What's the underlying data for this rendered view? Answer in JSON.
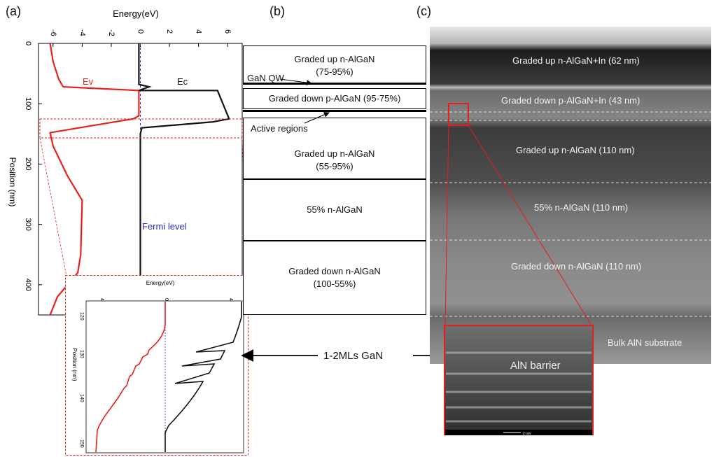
{
  "panels": {
    "a": "(a)",
    "b": "(b)",
    "c": "(c)"
  },
  "panel_a": {
    "x_axis_label": "Energy(eV)",
    "y_axis_label": "Position (nm)",
    "x_ticks": [
      "-6",
      "-4",
      "-2",
      "0",
      "2",
      "4",
      "6"
    ],
    "y_ticks": [
      "0",
      "100",
      "200",
      "300",
      "400"
    ],
    "ev_label": "Ev",
    "ec_label": "Ec",
    "fermi_label": "Fermi level",
    "colors": {
      "ev": "#e8201c",
      "ec": "#111111",
      "fermi": "#2a2ad6"
    },
    "inset": {
      "x_axis_label": "Energy(eV)",
      "y_axis_label": "Position (nm)",
      "x_ticks": [
        "4",
        "0",
        "4"
      ],
      "y_ticks": [
        "120",
        "130",
        "140",
        "150"
      ]
    }
  },
  "chart_data": {
    "type": "line",
    "xlabel": "Energy(eV)",
    "ylabel": "Position (nm)",
    "xlim": [
      -7,
      7
    ],
    "ylim": [
      0,
      450
    ],
    "series": [
      {
        "name": "Ev",
        "points": [
          [
            -6.2,
            0
          ],
          [
            -6.0,
            30
          ],
          [
            -5.6,
            60
          ],
          [
            -5.3,
            72
          ],
          [
            -0.1,
            78
          ],
          [
            -0.1,
            120
          ],
          [
            -0.5,
            125
          ],
          [
            -3.0,
            135
          ],
          [
            -6.2,
            148
          ],
          [
            -6.0,
            170
          ],
          [
            -5.0,
            220
          ],
          [
            -4.0,
            260
          ],
          [
            -4.1,
            350
          ],
          [
            -4.3,
            380
          ],
          [
            -5.7,
            420
          ],
          [
            -6.2,
            450
          ]
        ]
      },
      {
        "name": "Ec",
        "points": [
          [
            -0.1,
            0
          ],
          [
            -0.1,
            68
          ],
          [
            0.6,
            72
          ],
          [
            -0.1,
            78
          ],
          [
            5.3,
            78
          ],
          [
            6.1,
            125
          ],
          [
            5.0,
            130
          ],
          [
            0.1,
            140
          ],
          [
            0.0,
            150
          ],
          [
            0.0,
            450
          ]
        ]
      }
    ]
  },
  "panel_b": {
    "layers": [
      {
        "label": "Graded up n-AlGaN\n(75-95%)"
      },
      {
        "label": "Graded down p-AlGaN (95-75%)"
      },
      {
        "label": "Graded up n-AlGaN\n(55-95%)"
      },
      {
        "label": "55% n-AlGaN"
      },
      {
        "label": "Graded down n-AlGaN\n(100-55%)"
      }
    ],
    "gan_qw_label": "GaN QW",
    "active_regions_label": "Active regions"
  },
  "center_label": "1-2MLs GaN",
  "panel_c": {
    "layers": [
      "Graded up n-AlGaN+In (62 nm)",
      "Graded down p-AlGaN+In (43 nm)",
      "Graded up n-AlGaN (110 nm)",
      "55% n-AlGaN (110 nm)",
      "Graded down n-AlGaN (110 nm)",
      "Bulk AlN substrate"
    ],
    "inset_label": "AlN barrier",
    "scale_label": "2 nm"
  }
}
